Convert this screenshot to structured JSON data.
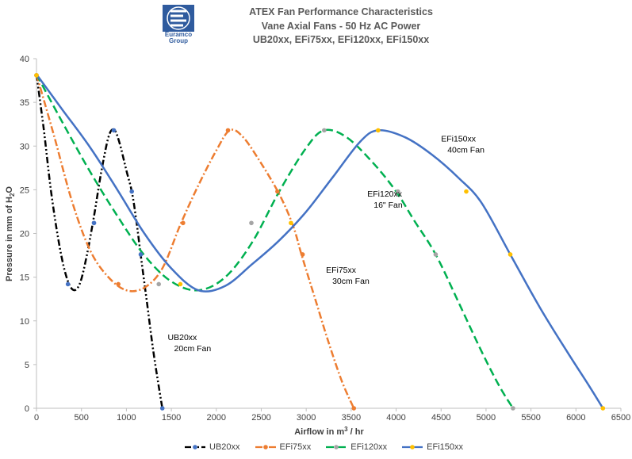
{
  "header": {
    "logo_text_1": "Euramco",
    "logo_text_2": "Group",
    "title_1": "ATEX Fan Performance Characteristics",
    "title_2": "Vane Axial Fans - 50 Hz AC Power",
    "title_3": "UB20xx, EFi75xx, EFi120xx, EFi150xx"
  },
  "chart_data": {
    "type": "line",
    "xlabel_main": "Airflow in m",
    "xlabel_sup": "3",
    "xlabel_tail": " / hr",
    "ylabel_main": "Pressure in mm of H",
    "ylabel_sub": "2",
    "ylabel_tail": "O",
    "xlim": [
      0,
      6500
    ],
    "ylim": [
      0,
      40
    ],
    "xticks": [
      0,
      500,
      1000,
      1500,
      2000,
      2500,
      3000,
      3500,
      4000,
      4500,
      5000,
      5500,
      6000,
      6500
    ],
    "yticks": [
      0,
      5,
      10,
      15,
      20,
      25,
      30,
      35,
      40
    ],
    "grid": false,
    "legend_position": "bottom",
    "series": [
      {
        "name": "UB20xx",
        "color": "#000000",
        "marker_color": "#4472c4",
        "dash": "8,3,2,3,2,3",
        "curve": [
          [
            0,
            38.2
          ],
          [
            80,
            32
          ],
          [
            160,
            25
          ],
          [
            240,
            19.5
          ],
          [
            320,
            15.5
          ],
          [
            400,
            13.6
          ],
          [
            480,
            14.2
          ],
          [
            560,
            17.5
          ],
          [
            640,
            22
          ],
          [
            720,
            27
          ],
          [
            800,
            31
          ],
          [
            860,
            31.9
          ],
          [
            920,
            30.5
          ],
          [
            1000,
            27.2
          ],
          [
            1060,
            24.8
          ],
          [
            1110,
            21.5
          ],
          [
            1160,
            17.5
          ],
          [
            1230,
            12
          ],
          [
            1300,
            6.5
          ],
          [
            1360,
            2.5
          ],
          [
            1400,
            0
          ]
        ],
        "markers": [
          [
            0,
            38.1
          ],
          [
            350,
            14.2
          ],
          [
            640,
            21.2
          ],
          [
            860,
            31.8
          ],
          [
            1060,
            24.8
          ],
          [
            1160,
            17.6
          ],
          [
            1400,
            0
          ]
        ]
      },
      {
        "name": "EFi75xx",
        "color": "#ed7d31",
        "marker_color": "#ed7d31",
        "dash": "9,3,2,3",
        "curve": [
          [
            0,
            38.2
          ],
          [
            200,
            31
          ],
          [
            400,
            23.5
          ],
          [
            600,
            18
          ],
          [
            800,
            15
          ],
          [
            1000,
            13.5
          ],
          [
            1200,
            13.8
          ],
          [
            1400,
            16
          ],
          [
            1600,
            21
          ],
          [
            1800,
            25.5
          ],
          [
            2000,
            29.5
          ],
          [
            2150,
            31.8
          ],
          [
            2300,
            31
          ],
          [
            2500,
            28
          ],
          [
            2700,
            24.5
          ],
          [
            2850,
            21
          ],
          [
            2950,
            17.5
          ],
          [
            3100,
            12.5
          ],
          [
            3250,
            7.5
          ],
          [
            3400,
            3
          ],
          [
            3530,
            0
          ]
        ],
        "markers": [
          [
            0,
            38.1
          ],
          [
            910,
            14.2
          ],
          [
            1630,
            21.2
          ],
          [
            2130,
            31.8
          ],
          [
            2680,
            24.8
          ],
          [
            2960,
            17.6
          ],
          [
            3530,
            0
          ]
        ]
      },
      {
        "name": "EFi120xx",
        "color": "#00b050",
        "marker_color": "#a5a5a5",
        "dash": "10,5",
        "curve": [
          [
            0,
            38.2
          ],
          [
            300,
            32.5
          ],
          [
            600,
            27
          ],
          [
            900,
            22
          ],
          [
            1200,
            17.5
          ],
          [
            1500,
            14.5
          ],
          [
            1800,
            13.5
          ],
          [
            2100,
            15
          ],
          [
            2400,
            19
          ],
          [
            2700,
            24.8
          ],
          [
            3000,
            29.8
          ],
          [
            3200,
            31.8
          ],
          [
            3450,
            31
          ],
          [
            3750,
            28
          ],
          [
            4000,
            24.8
          ],
          [
            4200,
            21.5
          ],
          [
            4440,
            17.6
          ],
          [
            4700,
            12
          ],
          [
            4950,
            6.5
          ],
          [
            5150,
            2.5
          ],
          [
            5300,
            0
          ]
        ],
        "markers": [
          [
            0,
            38.1
          ],
          [
            1360,
            14.2
          ],
          [
            2390,
            21.2
          ],
          [
            3200,
            31.8
          ],
          [
            4020,
            24.8
          ],
          [
            4440,
            17.6
          ],
          [
            5300,
            0
          ]
        ]
      },
      {
        "name": "EFi150xx",
        "color": "#4472c4",
        "marker_color": "#ffc000",
        "dash": "",
        "curve": [
          [
            0,
            38.2
          ],
          [
            300,
            34
          ],
          [
            600,
            29.8
          ],
          [
            900,
            25
          ],
          [
            1200,
            20
          ],
          [
            1500,
            16
          ],
          [
            1800,
            13.5
          ],
          [
            2100,
            14
          ],
          [
            2400,
            16.5
          ],
          [
            2700,
            19.2
          ],
          [
            3000,
            22.5
          ],
          [
            3300,
            26.5
          ],
          [
            3600,
            30.5
          ],
          [
            3800,
            31.8
          ],
          [
            4100,
            31
          ],
          [
            4400,
            29
          ],
          [
            4700,
            26.3
          ],
          [
            4950,
            23.5
          ],
          [
            5270,
            17.6
          ],
          [
            5600,
            11.5
          ],
          [
            5900,
            6.5
          ],
          [
            6150,
            2.5
          ],
          [
            6300,
            0
          ]
        ],
        "markers": [
          [
            0,
            38.1
          ],
          [
            1600,
            14.2
          ],
          [
            2830,
            21.2
          ],
          [
            3800,
            31.8
          ],
          [
            4780,
            24.8
          ],
          [
            5270,
            17.6
          ],
          [
            6300,
            0
          ]
        ]
      }
    ],
    "annotations": [
      {
        "lines": [
          "UB20xx",
          "20cm Fan"
        ],
        "x": 1460,
        "y": 7.8
      },
      {
        "lines": [
          "EFi75xx",
          "30cm Fan"
        ],
        "x": 3220,
        "y": 15.5
      },
      {
        "lines": [
          "EFi120xx",
          "16\" Fan"
        ],
        "x": 3680,
        "y": 24.2
      },
      {
        "lines": [
          "EFi150xx",
          "40cm Fan"
        ],
        "x": 4500,
        "y": 30.5
      }
    ]
  }
}
